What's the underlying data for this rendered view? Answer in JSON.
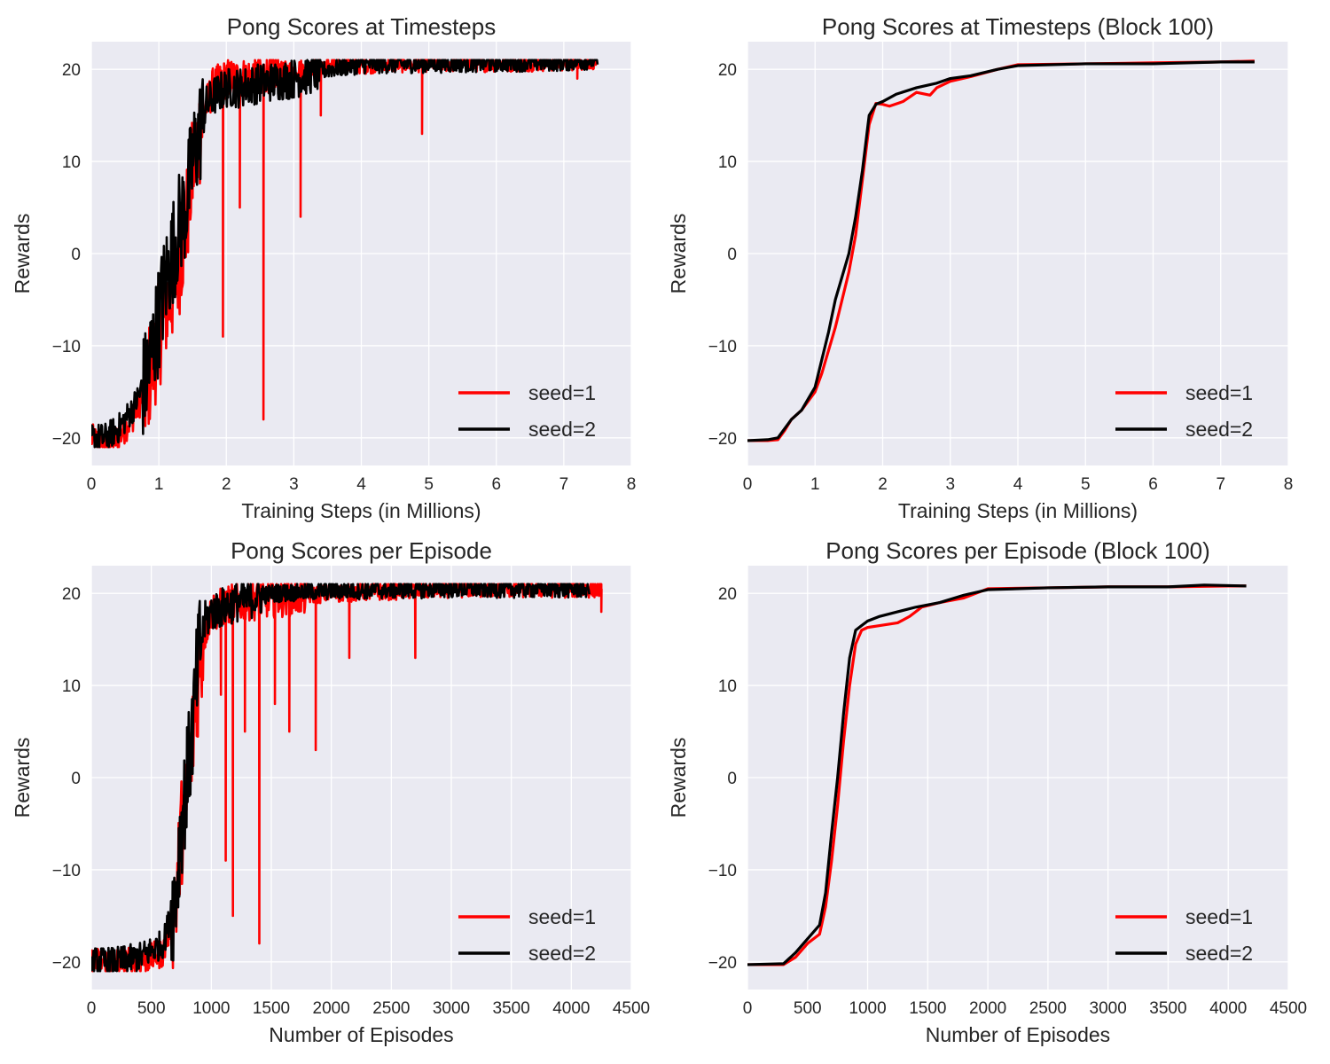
{
  "colors": {
    "seed1": "#ff0000",
    "seed2": "#000000",
    "panel_bg": "#eaeaf2",
    "grid": "#ffffff"
  },
  "chart_data": [
    {
      "type": "line",
      "title": "Pong Scores at Timesteps",
      "xlabel": "Training Steps (in Millions)",
      "ylabel": "Rewards",
      "xlim": [
        0,
        8
      ],
      "ylim": [
        -23,
        23
      ],
      "xticks": [
        0,
        1,
        2,
        3,
        4,
        5,
        6,
        7,
        8
      ],
      "yticks": [
        -20,
        -10,
        0,
        10,
        20
      ],
      "grid": true,
      "legend": "lower-right",
      "noisy": true,
      "series": [
        {
          "name": "seed=1",
          "points": [
            [
              0,
              -20
            ],
            [
              0.2,
              -21
            ],
            [
              0.4,
              -20
            ],
            [
              0.6,
              -18
            ],
            [
              0.8,
              -15
            ],
            [
              1.0,
              -9
            ],
            [
              1.1,
              -6
            ],
            [
              1.2,
              -4
            ],
            [
              1.3,
              -1
            ],
            [
              1.4,
              3
            ],
            [
              1.5,
              9
            ],
            [
              1.6,
              13
            ],
            [
              1.7,
              16
            ],
            [
              1.8,
              18
            ],
            [
              2.0,
              19
            ],
            [
              2.2,
              19
            ],
            [
              2.5,
              19.5
            ],
            [
              3.0,
              20
            ],
            [
              3.5,
              20.5
            ],
            [
              4.0,
              20.5
            ],
            [
              5.0,
              20.7
            ],
            [
              6.0,
              20.7
            ],
            [
              7.0,
              20.8
            ],
            [
              7.5,
              21
            ]
          ],
          "dips": [
            [
              1.95,
              -9
            ],
            [
              2.2,
              5
            ],
            [
              2.55,
              -18
            ],
            [
              3.1,
              4
            ],
            [
              3.4,
              15
            ],
            [
              4.9,
              13
            ],
            [
              7.2,
              19
            ]
          ]
        },
        {
          "name": "seed=2",
          "points": [
            [
              0,
              -20
            ],
            [
              0.2,
              -20
            ],
            [
              0.4,
              -19
            ],
            [
              0.6,
              -17
            ],
            [
              0.8,
              -14
            ],
            [
              1.0,
              -7
            ],
            [
              1.1,
              -3
            ],
            [
              1.2,
              0
            ],
            [
              1.3,
              3
            ],
            [
              1.4,
              5
            ],
            [
              1.5,
              10
            ],
            [
              1.6,
              13
            ],
            [
              1.7,
              16
            ],
            [
              1.8,
              17
            ],
            [
              2.0,
              18
            ],
            [
              2.2,
              18
            ],
            [
              2.5,
              18.5
            ],
            [
              3.0,
              19
            ],
            [
              3.5,
              20
            ],
            [
              4.0,
              20.5
            ],
            [
              5.0,
              20.6
            ],
            [
              6.0,
              20.7
            ],
            [
              7.0,
              20.8
            ],
            [
              7.5,
              21
            ]
          ],
          "dips": []
        }
      ]
    },
    {
      "type": "line",
      "title": "Pong Scores at Timesteps (Block 100)",
      "xlabel": "Training Steps (in Millions)",
      "ylabel": "Rewards",
      "xlim": [
        0,
        8
      ],
      "ylim": [
        -23,
        23
      ],
      "xticks": [
        0,
        1,
        2,
        3,
        4,
        5,
        6,
        7,
        8
      ],
      "yticks": [
        -20,
        -10,
        0,
        10,
        20
      ],
      "grid": true,
      "legend": "lower-right",
      "noisy": false,
      "series": [
        {
          "name": "seed=1",
          "points": [
            [
              0,
              -20.3
            ],
            [
              0.3,
              -20.3
            ],
            [
              0.45,
              -20.2
            ],
            [
              0.55,
              -19.2
            ],
            [
              0.65,
              -18
            ],
            [
              0.8,
              -17
            ],
            [
              1.0,
              -15
            ],
            [
              1.1,
              -13
            ],
            [
              1.2,
              -10.5
            ],
            [
              1.3,
              -8
            ],
            [
              1.4,
              -5
            ],
            [
              1.5,
              -2
            ],
            [
              1.6,
              2
            ],
            [
              1.7,
              8
            ],
            [
              1.8,
              14
            ],
            [
              1.9,
              16.3
            ],
            [
              2.0,
              16.2
            ],
            [
              2.1,
              16
            ],
            [
              2.3,
              16.5
            ],
            [
              2.5,
              17.5
            ],
            [
              2.7,
              17.2
            ],
            [
              2.8,
              18
            ],
            [
              3.0,
              18.7
            ],
            [
              3.3,
              19.2
            ],
            [
              3.7,
              20
            ],
            [
              4.0,
              20.5
            ],
            [
              5.0,
              20.6
            ],
            [
              6.0,
              20.7
            ],
            [
              7.0,
              20.8
            ],
            [
              7.5,
              20.9
            ]
          ]
        },
        {
          "name": "seed=2",
          "points": [
            [
              0,
              -20.3
            ],
            [
              0.3,
              -20.2
            ],
            [
              0.45,
              -20
            ],
            [
              0.55,
              -19
            ],
            [
              0.65,
              -18
            ],
            [
              0.8,
              -17
            ],
            [
              1.0,
              -14.5
            ],
            [
              1.1,
              -11.5
            ],
            [
              1.2,
              -8.5
            ],
            [
              1.3,
              -5
            ],
            [
              1.4,
              -2.5
            ],
            [
              1.5,
              0
            ],
            [
              1.6,
              4
            ],
            [
              1.7,
              9
            ],
            [
              1.8,
              15
            ],
            [
              1.9,
              16.2
            ],
            [
              2.0,
              16.5
            ],
            [
              2.2,
              17.3
            ],
            [
              2.5,
              18
            ],
            [
              2.8,
              18.5
            ],
            [
              3.0,
              19
            ],
            [
              3.3,
              19.3
            ],
            [
              3.7,
              20
            ],
            [
              4.0,
              20.4
            ],
            [
              5.0,
              20.6
            ],
            [
              6.0,
              20.6
            ],
            [
              7.0,
              20.8
            ],
            [
              7.5,
              20.8
            ]
          ]
        }
      ]
    },
    {
      "type": "line",
      "title": "Pong Scores per Episode",
      "xlabel": "Number of Episodes",
      "ylabel": "Rewards",
      "xlim": [
        0,
        4500
      ],
      "ylim": [
        -23,
        23
      ],
      "xticks": [
        0,
        500,
        1000,
        1500,
        2000,
        2500,
        3000,
        3500,
        4000,
        4500
      ],
      "yticks": [
        -20,
        -10,
        0,
        10,
        20
      ],
      "grid": true,
      "legend": "lower-right",
      "noisy": true,
      "series": [
        {
          "name": "seed=1",
          "points": [
            [
              0,
              -20
            ],
            [
              200,
              -20
            ],
            [
              400,
              -20
            ],
            [
              600,
              -19
            ],
            [
              700,
              -14
            ],
            [
              750,
              -6
            ],
            [
              800,
              -2
            ],
            [
              850,
              5
            ],
            [
              900,
              12
            ],
            [
              950,
              16
            ],
            [
              1000,
              18
            ],
            [
              1200,
              19
            ],
            [
              1500,
              19.5
            ],
            [
              2000,
              20
            ],
            [
              3000,
              20.5
            ],
            [
              4000,
              20.5
            ],
            [
              4250,
              20.5
            ]
          ],
          "dips": [
            [
              1080,
              9
            ],
            [
              1120,
              -9
            ],
            [
              1180,
              -15
            ],
            [
              1280,
              5
            ],
            [
              1400,
              -18
            ],
            [
              1530,
              8
            ],
            [
              1650,
              5
            ],
            [
              1870,
              3
            ],
            [
              2150,
              13
            ],
            [
              2700,
              13
            ],
            [
              4250,
              18
            ]
          ]
        },
        {
          "name": "seed=2",
          "points": [
            [
              0,
              -20
            ],
            [
              200,
              -20
            ],
            [
              400,
              -19.5
            ],
            [
              600,
              -18
            ],
            [
              700,
              -13
            ],
            [
              750,
              -5
            ],
            [
              800,
              0
            ],
            [
              850,
              6
            ],
            [
              900,
              14
            ],
            [
              950,
              17
            ],
            [
              1000,
              18
            ],
            [
              1200,
              19
            ],
            [
              1500,
              20
            ],
            [
              2000,
              20.3
            ],
            [
              3000,
              20.5
            ],
            [
              4000,
              20.5
            ],
            [
              4150,
              20.5
            ]
          ],
          "dips": []
        }
      ]
    },
    {
      "type": "line",
      "title": "Pong Scores per Episode (Block 100)",
      "xlabel": "Number of Episodes",
      "ylabel": "Rewards",
      "xlim": [
        0,
        4500
      ],
      "ylim": [
        -23,
        23
      ],
      "xticks": [
        0,
        500,
        1000,
        1500,
        2000,
        2500,
        3000,
        3500,
        4000,
        4500
      ],
      "yticks": [
        -20,
        -10,
        0,
        10,
        20
      ],
      "grid": true,
      "legend": "lower-right",
      "noisy": false,
      "series": [
        {
          "name": "seed=1",
          "points": [
            [
              0,
              -20.3
            ],
            [
              300,
              -20.3
            ],
            [
              400,
              -19.5
            ],
            [
              500,
              -18
            ],
            [
              600,
              -17
            ],
            [
              650,
              -14
            ],
            [
              700,
              -9
            ],
            [
              750,
              -3
            ],
            [
              800,
              4
            ],
            [
              850,
              10
            ],
            [
              900,
              14.5
            ],
            [
              950,
              16
            ],
            [
              1000,
              16.3
            ],
            [
              1100,
              16.5
            ],
            [
              1250,
              16.8
            ],
            [
              1350,
              17.5
            ],
            [
              1450,
              18.5
            ],
            [
              1600,
              19
            ],
            [
              1800,
              19.5
            ],
            [
              2000,
              20.5
            ],
            [
              2500,
              20.6
            ],
            [
              3000,
              20.7
            ],
            [
              3500,
              20.7
            ],
            [
              4000,
              20.8
            ],
            [
              4150,
              20.8
            ]
          ]
        },
        {
          "name": "seed=2",
          "points": [
            [
              0,
              -20.3
            ],
            [
              300,
              -20.2
            ],
            [
              400,
              -19
            ],
            [
              500,
              -17.5
            ],
            [
              600,
              -16
            ],
            [
              650,
              -12.5
            ],
            [
              700,
              -6
            ],
            [
              750,
              0
            ],
            [
              800,
              7
            ],
            [
              850,
              13
            ],
            [
              900,
              16
            ],
            [
              950,
              16.5
            ],
            [
              1000,
              17
            ],
            [
              1100,
              17.5
            ],
            [
              1250,
              18
            ],
            [
              1400,
              18.5
            ],
            [
              1600,
              19
            ],
            [
              1800,
              19.8
            ],
            [
              2000,
              20.4
            ],
            [
              2500,
              20.6
            ],
            [
              3000,
              20.7
            ],
            [
              3500,
              20.7
            ],
            [
              3800,
              20.9
            ],
            [
              4150,
              20.8
            ]
          ]
        }
      ]
    }
  ]
}
